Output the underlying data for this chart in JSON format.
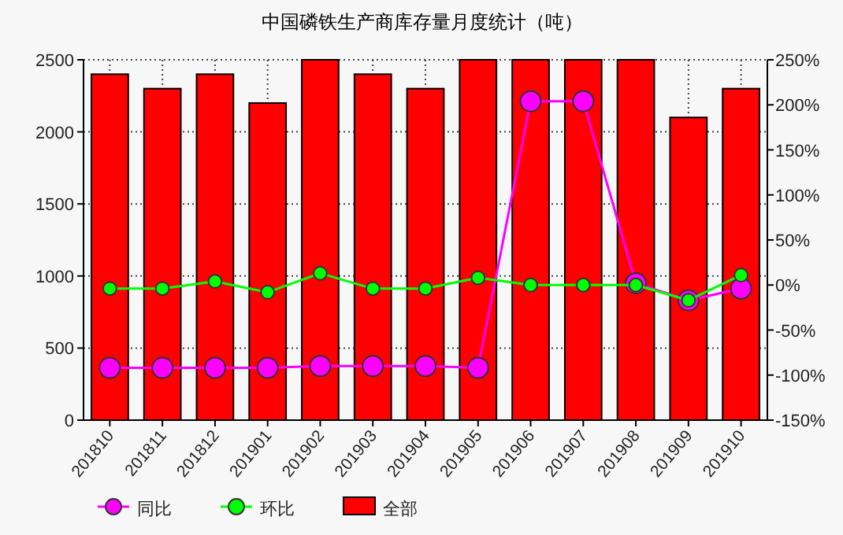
{
  "chart_data": {
    "type": "bar",
    "title": "中国磷铁生产商库存量月度统计（吨）",
    "categories": [
      "201810",
      "201811",
      "201812",
      "201901",
      "201902",
      "201903",
      "201904",
      "201905",
      "201906",
      "201907",
      "201908",
      "201909",
      "201910"
    ],
    "series": [
      {
        "name": "同比",
        "type": "line",
        "axis": "y2",
        "color": "#ff00ff",
        "values": [
          -92,
          -92,
          -92,
          -92,
          -90,
          -90,
          -90,
          -92,
          204,
          204,
          2,
          -17,
          -4
        ]
      },
      {
        "name": "环比",
        "type": "line",
        "axis": "y2",
        "color": "#00ff00",
        "values": [
          -4,
          -4,
          4,
          -8,
          13,
          -4,
          -4,
          8,
          0,
          0,
          0,
          -17,
          11
        ]
      },
      {
        "name": "全部",
        "color": "#ff0000",
        "values": [
          2400,
          2300,
          2400,
          2200,
          2500,
          2400,
          2300,
          2500,
          2500,
          2500,
          2500,
          2100,
          2300
        ]
      }
    ],
    "ylim": [
      0,
      2500
    ],
    "yticks": [
      0,
      500,
      1000,
      1500,
      2000,
      2500
    ],
    "y2lim": [
      -150,
      250
    ],
    "y2ticks": [
      {
        "value": -150,
        "label": "-150%"
      },
      {
        "value": -100,
        "label": "-100%"
      },
      {
        "value": -50,
        "label": "-50%"
      },
      {
        "value": 0,
        "label": "0%"
      },
      {
        "value": 50,
        "label": "50%"
      },
      {
        "value": 100,
        "label": "100%"
      },
      {
        "value": 150,
        "label": "150%"
      },
      {
        "value": 200,
        "label": "200%"
      },
      {
        "value": 250,
        "label": "250%"
      }
    ],
    "grid": true,
    "marker": "circle",
    "legend": "bottom"
  }
}
